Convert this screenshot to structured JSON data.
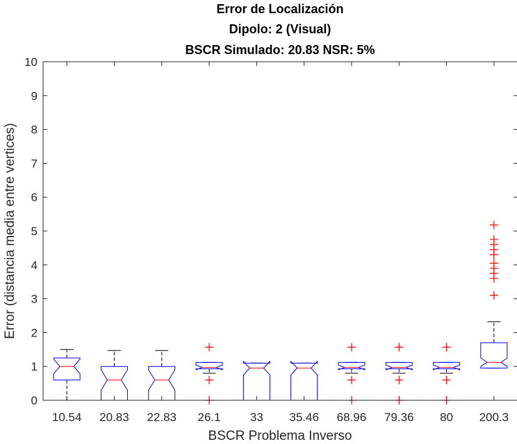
{
  "chart_data": {
    "type": "boxplot",
    "title": [
      "Error de Localización",
      "Dipolo: 2 (Visual)",
      "BSCR Simulado: 20.83 NSR: 5%"
    ],
    "xlabel": "BSCR Problema Inverso",
    "ylabel": "Error (distancia media entre vertices)",
    "ylim": [
      0,
      10
    ],
    "yticks": [
      0,
      1,
      2,
      3,
      4,
      5,
      6,
      7,
      8,
      9,
      10
    ],
    "notched": true,
    "colors": {
      "box": "#0000ff",
      "median": "#ff0000",
      "whisker": "#000000",
      "outlier": "#ff0000",
      "axis": "#262626"
    },
    "categories": [
      "10.54",
      "20.83",
      "22.83",
      "26.1",
      "33",
      "35.46",
      "68.96",
      "79.36",
      "80",
      "200.3"
    ],
    "boxes": [
      {
        "q1": 0.6,
        "median": 1.0,
        "q3": 1.25,
        "notch_lo": 0.78,
        "notch_hi": 1.22,
        "whisker_lo": 0.0,
        "whisker_hi": 1.5,
        "outliers": []
      },
      {
        "q1": 0.0,
        "median": 0.6,
        "q3": 1.0,
        "notch_lo": 0.3,
        "notch_hi": 0.9,
        "whisker_lo": 0.0,
        "whisker_hi": 1.47,
        "outliers": []
      },
      {
        "q1": 0.0,
        "median": 0.6,
        "q3": 1.0,
        "notch_lo": 0.3,
        "notch_hi": 0.9,
        "whisker_lo": 0.0,
        "whisker_hi": 1.47,
        "outliers": []
      },
      {
        "q1": 0.93,
        "median": 0.97,
        "q3": 1.12,
        "notch_lo": 0.9,
        "notch_hi": 1.04,
        "whisker_lo": 0.8,
        "whisker_hi": 1.12,
        "outliers": [
          0.0,
          0.6,
          1.57
        ]
      },
      {
        "q1": 0.0,
        "median": 0.95,
        "q3": 1.1,
        "notch_lo": 0.75,
        "notch_hi": 1.15,
        "whisker_lo": 0.0,
        "whisker_hi": 1.1,
        "outliers": []
      },
      {
        "q1": 0.0,
        "median": 0.95,
        "q3": 1.1,
        "notch_lo": 0.75,
        "notch_hi": 1.15,
        "whisker_lo": 0.0,
        "whisker_hi": 1.1,
        "outliers": []
      },
      {
        "q1": 0.93,
        "median": 0.97,
        "q3": 1.12,
        "notch_lo": 0.9,
        "notch_hi": 1.04,
        "whisker_lo": 0.8,
        "whisker_hi": 1.12,
        "outliers": [
          0.0,
          0.6,
          1.57
        ]
      },
      {
        "q1": 0.93,
        "median": 0.97,
        "q3": 1.12,
        "notch_lo": 0.9,
        "notch_hi": 1.04,
        "whisker_lo": 0.8,
        "whisker_hi": 1.12,
        "outliers": [
          0.0,
          0.6,
          1.57
        ]
      },
      {
        "q1": 0.93,
        "median": 0.97,
        "q3": 1.12,
        "notch_lo": 0.9,
        "notch_hi": 1.04,
        "whisker_lo": 0.8,
        "whisker_hi": 1.12,
        "outliers": [
          0.0,
          0.6,
          1.57
        ]
      },
      {
        "q1": 0.95,
        "median": 1.12,
        "q3": 1.7,
        "notch_lo": 1.0,
        "notch_hi": 1.25,
        "whisker_lo": 0.95,
        "whisker_hi": 2.32,
        "outliers": [
          3.1,
          3.6,
          3.75,
          3.9,
          4.05,
          4.3,
          4.45,
          4.6,
          4.75,
          5.18
        ]
      }
    ]
  }
}
